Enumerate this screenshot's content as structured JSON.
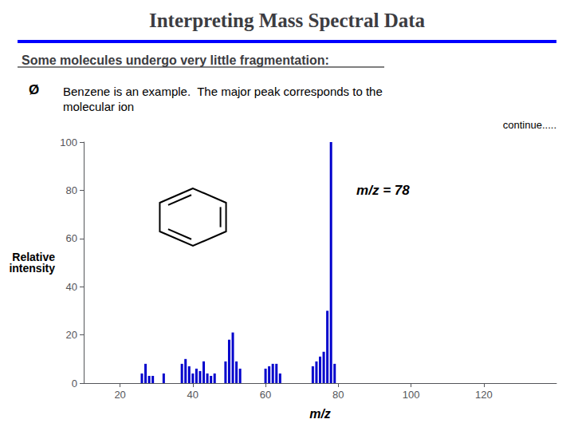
{
  "chart_data": {
    "type": "bar",
    "title": "Interpreting Mass Spectral Data",
    "subtitle": "Some molecules undergo very little fragmentation:",
    "annotations": [
      {
        "text": "m/z = 78",
        "x": 85,
        "y": 80
      },
      {
        "text": "Ø"
      },
      {
        "text": "Benzene is an example.  The major peak corresponds to the\nmolecular ion"
      },
      {
        "text": "continue....."
      }
    ],
    "xlabel": "m/z",
    "ylabel": "Relative\nintensity",
    "x": [
      26,
      27,
      28,
      29,
      32,
      37,
      38,
      39,
      40,
      41,
      42,
      43,
      44,
      45,
      46,
      49,
      50,
      51,
      52,
      53,
      60,
      61,
      62,
      63,
      64,
      73,
      74,
      75,
      76,
      77,
      78,
      79
    ],
    "values": [
      4,
      8,
      3,
      3,
      4,
      8,
      10,
      7,
      4,
      6,
      5,
      9,
      4,
      3,
      4,
      9,
      18,
      21,
      9,
      6,
      6,
      7,
      8,
      8,
      4,
      7,
      9,
      11,
      13,
      30,
      100,
      8
    ],
    "color": "#0000cc",
    "xlim": [
      10,
      140
    ],
    "ylim": [
      0,
      100
    ],
    "xticks": [
      20,
      40,
      60,
      80,
      100,
      120
    ],
    "yticks": [
      0,
      20,
      40,
      60,
      80,
      100
    ],
    "grid": false
  }
}
